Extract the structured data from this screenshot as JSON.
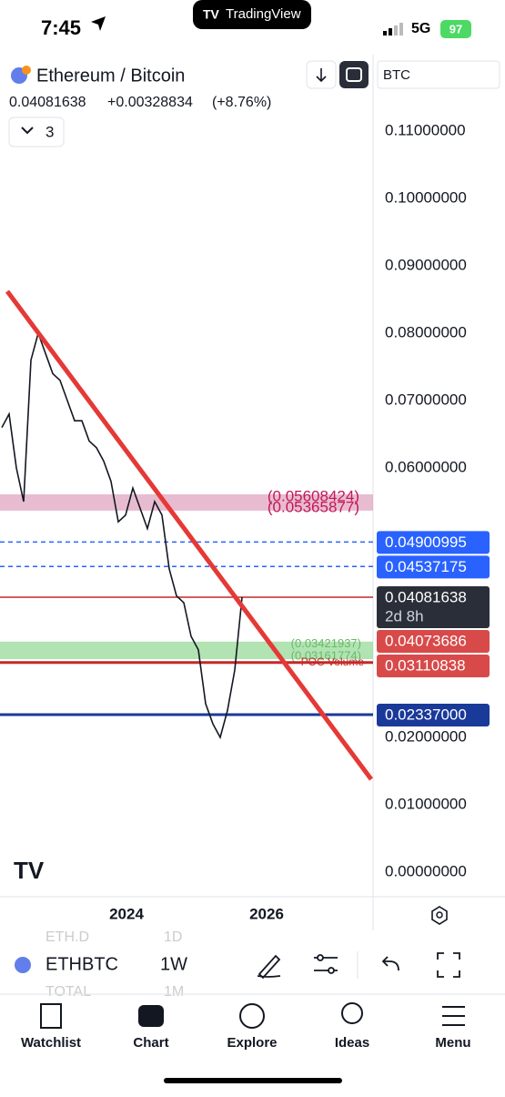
{
  "status_bar": {
    "time": "7:45",
    "app": "TradingView",
    "network": "5G",
    "battery": "97"
  },
  "header": {
    "title": "Ethereum / Bitcoin",
    "price": "0.04081638",
    "change": "+0.00328834",
    "change_pct": "(+8.76%)",
    "indicators": "3",
    "currency": "BTC"
  },
  "chart": {
    "ylim": [
      0,
      0.1182
    ],
    "yticks": [
      {
        "value": 0.11,
        "label": "0.11000000"
      },
      {
        "value": 0.1,
        "label": "0.10000000"
      },
      {
        "value": 0.09,
        "label": "0.09000000"
      },
      {
        "value": 0.08,
        "label": "0.08000000"
      },
      {
        "value": 0.07,
        "label": "0.07000000"
      },
      {
        "value": 0.06,
        "label": "0.06000000"
      },
      {
        "value": 0.02,
        "label": "0.02000000"
      },
      {
        "value": 0.01,
        "label": "0.01000000"
      },
      {
        "value": 0,
        "label": "0.00000000"
      }
    ],
    "price": [
      0.066,
      0.068,
      0.06,
      0.055,
      0.076,
      0.08,
      0.077,
      0.074,
      0.073,
      0.07,
      0.067,
      0.067,
      0.064,
      0.063,
      0.061,
      0.058,
      0.052,
      0.053,
      0.057,
      0.054,
      0.051,
      0.055,
      0.053,
      0.045,
      0.041,
      0.04,
      0.035,
      0.033,
      0.025,
      0.022,
      0.02,
      0.024,
      0.03,
      0.0408
    ],
    "zones": [
      {
        "top": {
          "value": 0.05608424,
          "label": "(0.05608424)"
        },
        "bottom": {
          "value": 0.05365877,
          "label": "(0.05365877)"
        },
        "color": "#d98fb0"
      },
      {
        "top": {
          "value": 0.03421937,
          "label": "(0.03421937)"
        },
        "bottom": {
          "value": 0.03161774,
          "label": "(0.03161774)"
        },
        "color": "#7fd17f"
      }
    ],
    "poc_label": "POC Volume",
    "levels": [
      {
        "value": 0.04900995,
        "label": "0.04900995",
        "color": "#2962ff",
        "line": "dashed"
      },
      {
        "value": 0.04537175,
        "label": "0.04537175",
        "color": "#2962ff",
        "line": "dashed"
      },
      {
        "value": 0.04081638,
        "label": "0.04081638",
        "sublabel": "2d 8h",
        "color": "#2a2e39",
        "line": "thin"
      },
      {
        "value": 0.04073686,
        "label": "0.04073686",
        "color": "#d84a4a",
        "line": "none"
      },
      {
        "value": 0.03110838,
        "label": "0.03110838",
        "color": "#d84a4a",
        "line": "thick"
      },
      {
        "value": 0.02337,
        "label": "0.02337000",
        "color": "#1a3a9a",
        "line": "thick"
      }
    ],
    "x_labels": [
      "2024",
      "2026"
    ]
  },
  "toolbar": {
    "symbol": "ETHBTC",
    "interval": "1W",
    "ghost_symbols": [
      "ETH.D",
      "TOTAL"
    ],
    "ghost_intervals": [
      "1D",
      "1M"
    ]
  },
  "tabs": [
    "Watchlist",
    "Chart",
    "Explore",
    "Ideas",
    "Menu"
  ]
}
